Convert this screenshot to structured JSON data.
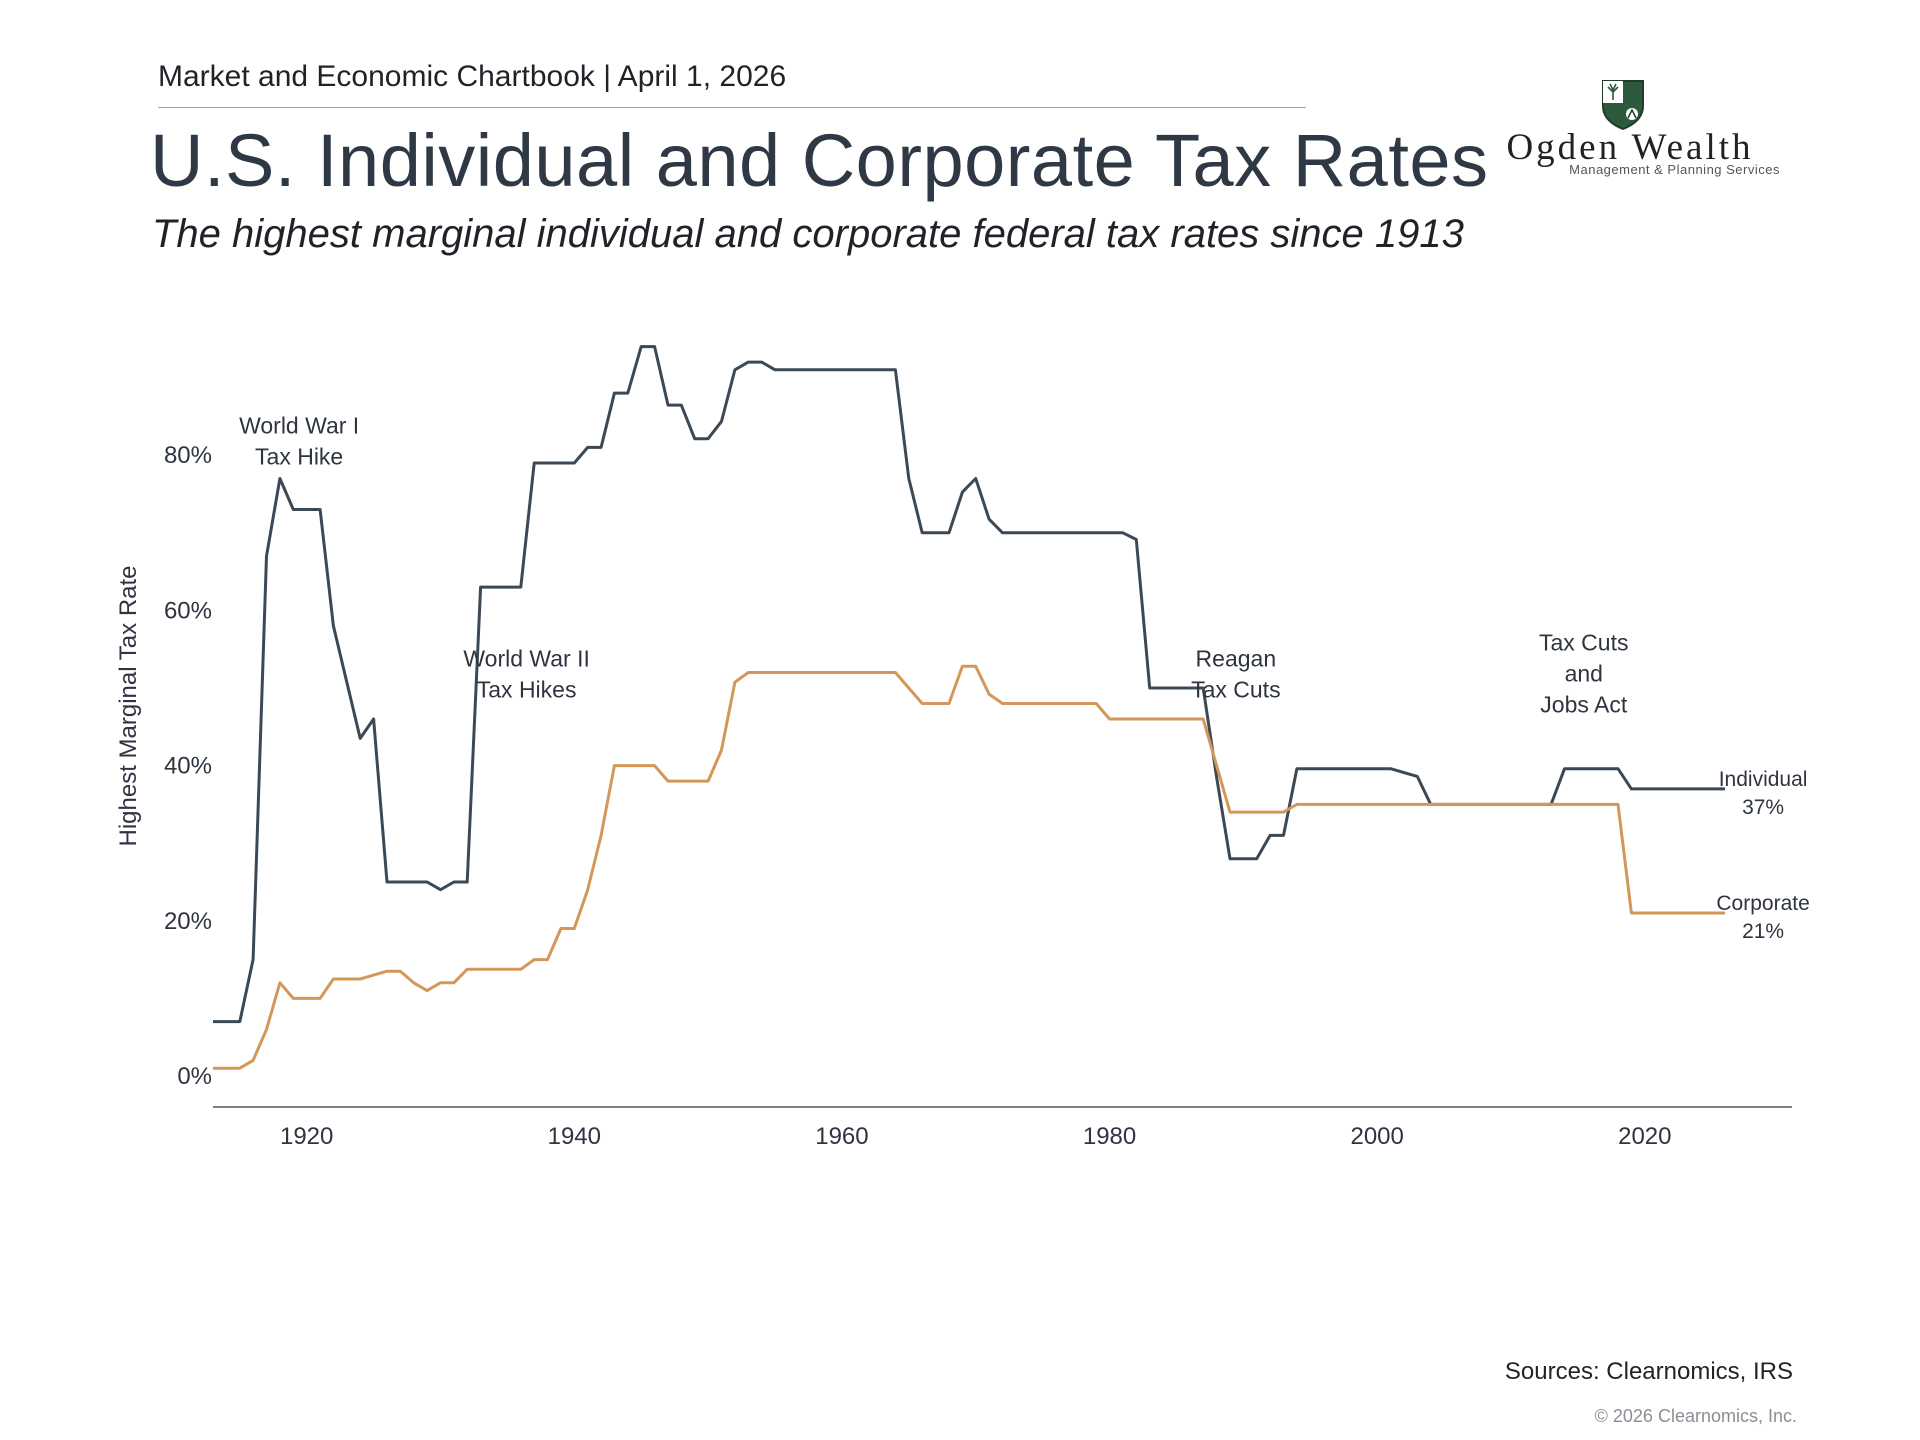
{
  "header": {
    "chartbook": "Market and Economic Chartbook | April 1, 2026",
    "title": "U.S. Individual and Corporate Tax Rates",
    "subtitle": "The highest marginal individual and corporate federal tax rates since 1913"
  },
  "logo": {
    "name": "Ogden Wealth",
    "tagline": "Management & Planning Services",
    "shield_icon": "shield-tree-lion-icon",
    "color": "#2d5a3d"
  },
  "footer": {
    "sources": "Sources: Clearnomics, IRS",
    "copyright": "© 2026 Clearnomics, Inc."
  },
  "colors": {
    "individual": "#3b4856",
    "corporate": "#d4975a",
    "axis": "#555555",
    "text": "#2e3440"
  },
  "chart_data": {
    "type": "line",
    "title": "U.S. Individual and Corporate Tax Rates",
    "xlabel": "",
    "ylabel": "Highest Marginal Tax Rate",
    "xlim": [
      1913,
      2031
    ],
    "ylim": [
      -4,
      100
    ],
    "x_ticks": [
      1920,
      1940,
      1960,
      1980,
      2000,
      2020
    ],
    "y_ticks": [
      0,
      20,
      40,
      60,
      80
    ],
    "y_tick_labels": [
      "0%",
      "20%",
      "40%",
      "60%",
      "80%"
    ],
    "grid": false,
    "legend": "inline-right",
    "series": [
      {
        "name": "Individual",
        "end_label": "37%",
        "points": [
          [
            1913,
            7
          ],
          [
            1915,
            7
          ],
          [
            1916,
            15
          ],
          [
            1917,
            67
          ],
          [
            1918,
            77
          ],
          [
            1919,
            73
          ],
          [
            1921,
            73
          ],
          [
            1922,
            58
          ],
          [
            1924,
            43.5
          ],
          [
            1925,
            46
          ],
          [
            1926,
            25
          ],
          [
            1929,
            25
          ],
          [
            1930,
            24
          ],
          [
            1931,
            25
          ],
          [
            1932,
            25
          ],
          [
            1933,
            63
          ],
          [
            1936,
            63
          ],
          [
            1937,
            79
          ],
          [
            1940,
            79
          ],
          [
            1941,
            81
          ],
          [
            1942,
            81
          ],
          [
            1943,
            88
          ],
          [
            1944,
            88
          ],
          [
            1945,
            94
          ],
          [
            1946,
            94
          ],
          [
            1947,
            86.45
          ],
          [
            1948,
            86.45
          ],
          [
            1949,
            82.13
          ],
          [
            1950,
            82.13
          ],
          [
            1951,
            84.36
          ],
          [
            1952,
            91
          ],
          [
            1953,
            92
          ],
          [
            1954,
            92
          ],
          [
            1955,
            91
          ],
          [
            1964,
            91
          ],
          [
            1965,
            77
          ],
          [
            1966,
            70
          ],
          [
            1968,
            70
          ],
          [
            1969,
            75.25
          ],
          [
            1970,
            77
          ],
          [
            1971,
            71.75
          ],
          [
            1972,
            70
          ],
          [
            1981,
            70
          ],
          [
            1982,
            69.13
          ],
          [
            1983,
            50
          ],
          [
            1987,
            50
          ],
          [
            1988,
            38.5
          ],
          [
            1989,
            28
          ],
          [
            1991,
            28
          ],
          [
            1992,
            31
          ],
          [
            1993,
            31
          ],
          [
            1994,
            39.6
          ],
          [
            2001,
            39.6
          ],
          [
            2003,
            38.6
          ],
          [
            2004,
            35
          ],
          [
            2013,
            35
          ],
          [
            2014,
            39.6
          ],
          [
            2018,
            39.6
          ],
          [
            2019,
            37
          ],
          [
            2026,
            37
          ]
        ]
      },
      {
        "name": "Corporate",
        "end_label": "21%",
        "points": [
          [
            1913,
            1
          ],
          [
            1915,
            1
          ],
          [
            1916,
            2
          ],
          [
            1917,
            6
          ],
          [
            1918,
            12
          ],
          [
            1919,
            10
          ],
          [
            1921,
            10
          ],
          [
            1922,
            12.5
          ],
          [
            1924,
            12.5
          ],
          [
            1925,
            13
          ],
          [
            1926,
            13.5
          ],
          [
            1927,
            13.5
          ],
          [
            1928,
            12
          ],
          [
            1929,
            11
          ],
          [
            1930,
            12
          ],
          [
            1931,
            12
          ],
          [
            1932,
            13.75
          ],
          [
            1936,
            13.75
          ],
          [
            1937,
            15
          ],
          [
            1938,
            15
          ],
          [
            1939,
            19
          ],
          [
            1940,
            19
          ],
          [
            1941,
            24
          ],
          [
            1942,
            31
          ],
          [
            1943,
            40
          ],
          [
            1946,
            40
          ],
          [
            1947,
            38
          ],
          [
            1950,
            38
          ],
          [
            1951,
            42
          ],
          [
            1952,
            50.75
          ],
          [
            1953,
            52
          ],
          [
            1964,
            52
          ],
          [
            1965,
            50
          ],
          [
            1966,
            48
          ],
          [
            1968,
            48
          ],
          [
            1969,
            52.8
          ],
          [
            1970,
            52.8
          ],
          [
            1971,
            49.2
          ],
          [
            1972,
            48
          ],
          [
            1979,
            48
          ],
          [
            1980,
            46
          ],
          [
            1987,
            46
          ],
          [
            1988,
            40
          ],
          [
            1989,
            34
          ],
          [
            1993,
            34
          ],
          [
            1994,
            35
          ],
          [
            2018,
            35
          ],
          [
            2019,
            21
          ],
          [
            2026,
            21
          ]
        ]
      }
    ],
    "annotations": [
      {
        "lines": [
          "World War I",
          "Tax Hike"
        ],
        "x": 1916,
        "y": 82.8
      },
      {
        "lines": [
          "World War II",
          "Tax Hikes"
        ],
        "x": 1933,
        "y": 52.8
      },
      {
        "lines": [
          "Reagan",
          "Tax Cuts"
        ],
        "x": 1986,
        "y": 52.8
      },
      {
        "lines": [
          "Tax Cuts",
          "and",
          "Jobs Act"
        ],
        "x": 2012,
        "y": 54.8
      }
    ]
  }
}
